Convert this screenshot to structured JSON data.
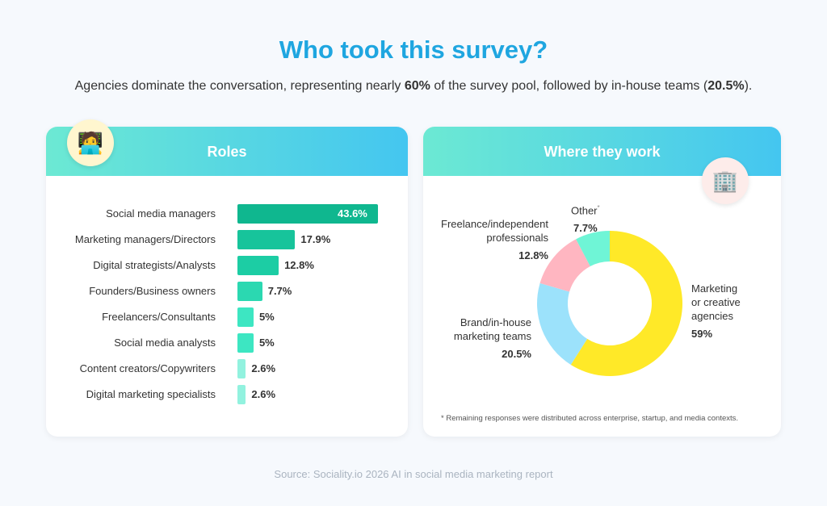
{
  "header": {
    "title": "Who took this survey?",
    "subtitle_pre": "Agencies dominate the conversation, representing nearly ",
    "subtitle_b1": "60%",
    "subtitle_mid": " of the survey pool, followed by in-house teams (",
    "subtitle_b2": "20.5%",
    "subtitle_post": ")."
  },
  "chart_data": [
    {
      "type": "bar",
      "orientation": "horizontal",
      "title": "Roles",
      "icon": "technologist-emoji",
      "categories": [
        "Social media managers",
        "Marketing managers/Directors",
        "Digital strategists/Analysts",
        "Founders/Business owners",
        "Freelancers/Consultants",
        "Social media analysts",
        "Content creators/Copywriters",
        "Digital marketing specialists"
      ],
      "values": [
        43.6,
        17.9,
        12.8,
        7.7,
        5,
        5,
        2.6,
        2.6
      ],
      "labels": [
        "43.6%",
        "17.9%",
        "12.8%",
        "7.7%",
        "5%",
        "5%",
        "2.6%",
        "2.6%"
      ],
      "colors": [
        "#0fb78f",
        "#17c49b",
        "#1ccda4",
        "#2bd8b1",
        "#3de6c2",
        "#3de6c2",
        "#92f2df",
        "#92f2df"
      ]
    },
    {
      "type": "pie",
      "donut": true,
      "title": "Where they work",
      "icon": "office-building-emoji",
      "categories": [
        "Marketing or creative agencies",
        "Brand/in-house marketing teams",
        "Freelance/independent professionals",
        "Other"
      ],
      "values": [
        59,
        20.5,
        12.8,
        7.7
      ],
      "labels": [
        "59%",
        "20.5%",
        "12.8%",
        "7.7%"
      ],
      "colors": [
        "#ffe928",
        "#9ce2fb",
        "#ffb6c1",
        "#6ff5d6"
      ],
      "label_lines": [
        [
          "Marketing",
          "or creative",
          "agencies"
        ],
        [
          "Brand/in-house",
          "marketing teams"
        ],
        [
          "Freelance/independent",
          "professionals"
        ],
        [
          "Other"
        ]
      ],
      "other_marker": "*",
      "footnote": "* Remaining responses were distributed across enterprise, startup, and media contexts."
    }
  ],
  "source": "Source: Sociality.io 2026 AI in social media marketing report"
}
